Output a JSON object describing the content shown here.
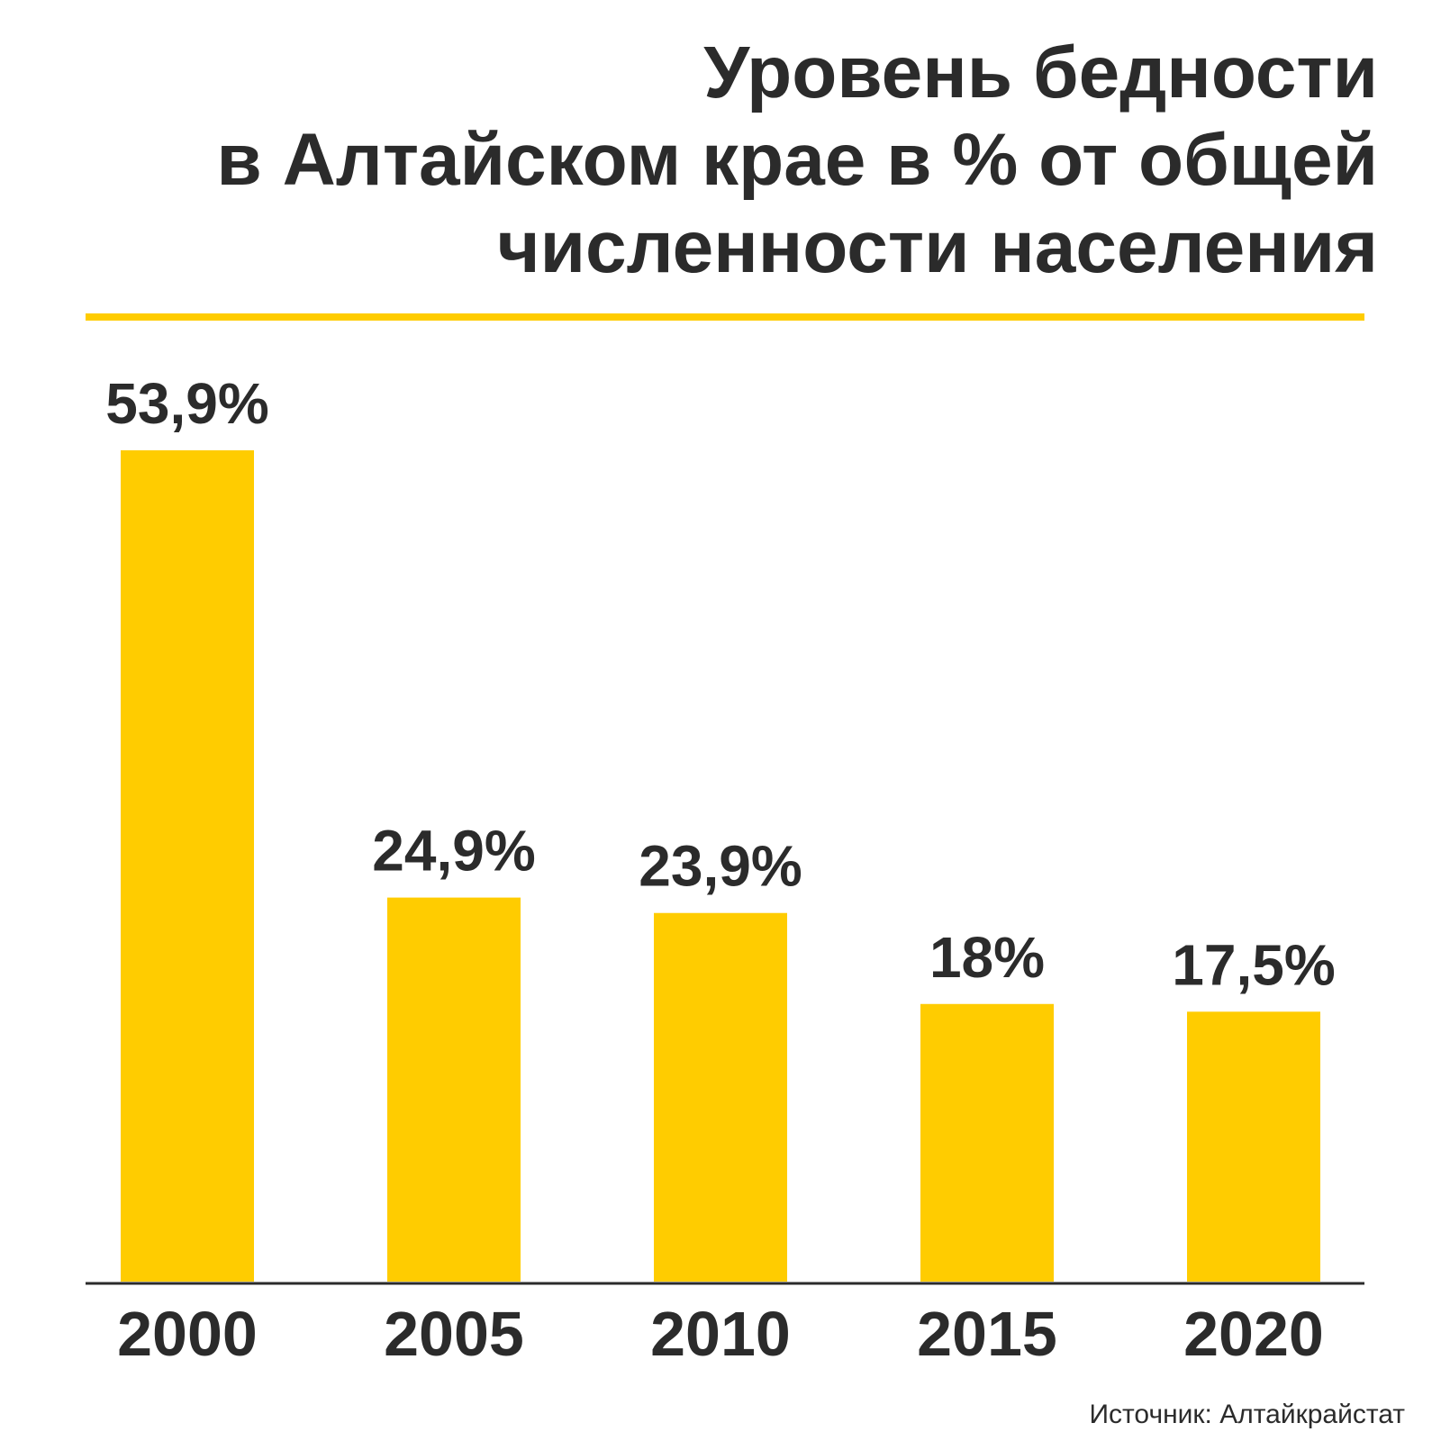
{
  "chart_data": {
    "type": "bar",
    "title": [
      "Уровень бедности",
      "в Алтайском крае в % от общей",
      "численности населения"
    ],
    "categories": [
      "2000",
      "2005",
      "2010",
      "2015",
      "2020"
    ],
    "values": [
      53.9,
      24.9,
      23.9,
      18,
      17.5
    ],
    "value_labels": [
      "53,9%",
      "24,9%",
      "23,9%",
      "18%",
      "17,5%"
    ],
    "color": "#ffcc00",
    "source": "Источник: Алтайкрайстат"
  }
}
